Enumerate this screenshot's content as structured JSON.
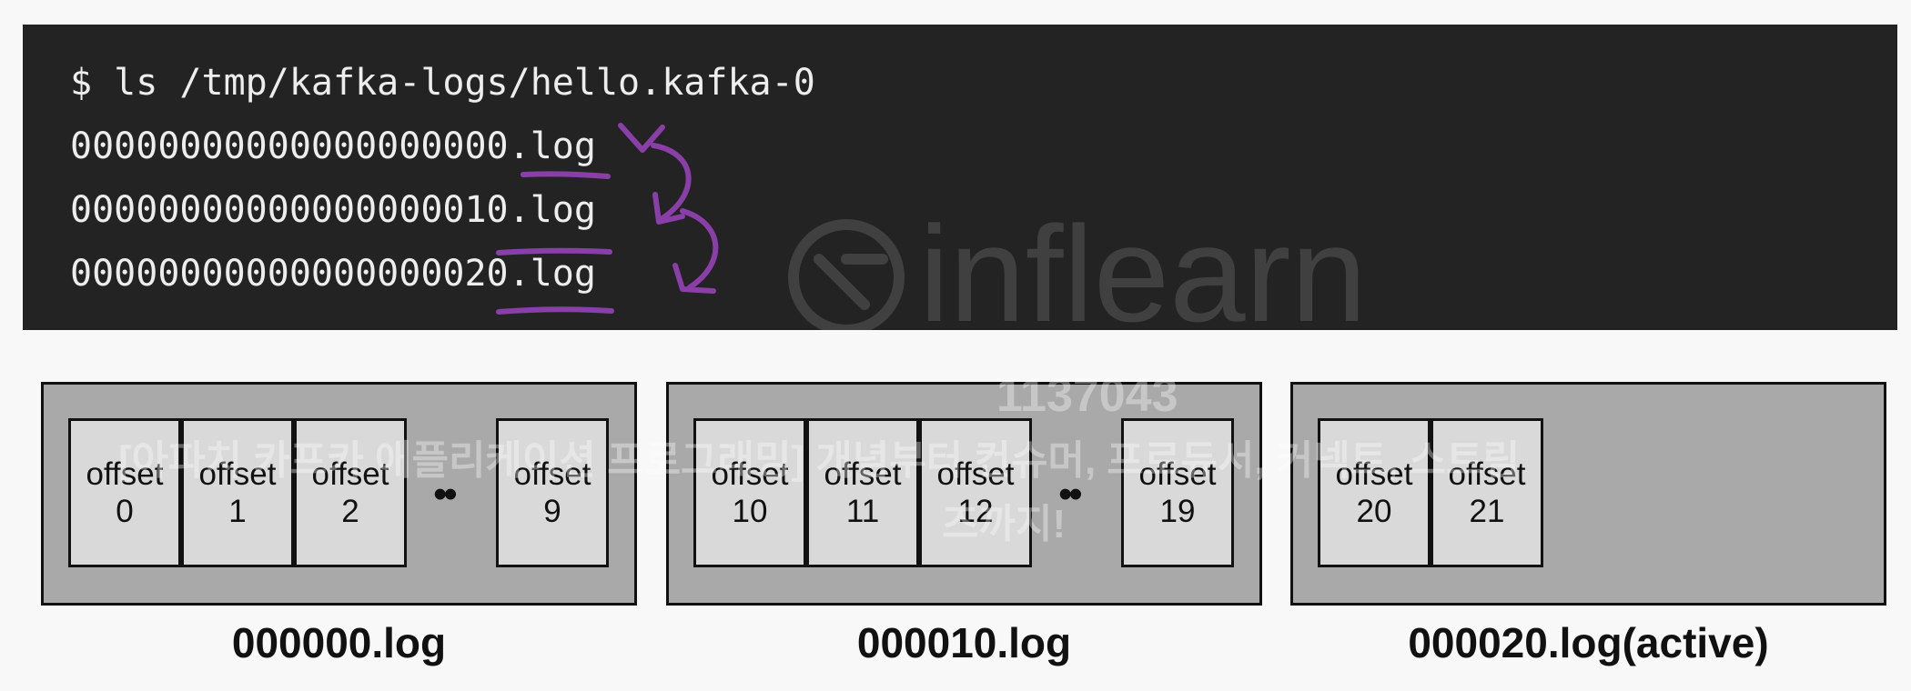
{
  "terminal": {
    "command": "$ ls /tmp/kafka-logs/hello.kafka-0",
    "files": [
      "00000000000000000000.log",
      "00000000000000000010.log",
      "00000000000000000020.log"
    ]
  },
  "segments": [
    {
      "label": "000000.log",
      "cells": [
        {
          "title": "offset",
          "num": "0"
        },
        {
          "title": "offset",
          "num": "1"
        },
        {
          "title": "offset",
          "num": "2"
        },
        {
          "title": "offset",
          "num": "9"
        }
      ],
      "ellipsis": "••"
    },
    {
      "label": "000010.log",
      "cells": [
        {
          "title": "offset",
          "num": "10"
        },
        {
          "title": "offset",
          "num": "11"
        },
        {
          "title": "offset",
          "num": "12"
        },
        {
          "title": "offset",
          "num": "19"
        }
      ],
      "ellipsis": "••"
    },
    {
      "label": "000020.log(active)",
      "cells": [
        {
          "title": "offset",
          "num": "20"
        },
        {
          "title": "offset",
          "num": "21"
        }
      ]
    }
  ],
  "watermark": {
    "brand": "inflearn",
    "id": "1137043",
    "course_line1": "[아파치 카프카 애플리케이션 프로그래밍] 개념부터 컨슈머, 프로듀서, 커넥트, 스트림",
    "course_line2": "즈까지!"
  },
  "colors": {
    "terminal_bg": "#232323",
    "segment_bg": "#a9a9a9",
    "cell_bg": "#d9d9d9",
    "annotation": "#8a3fa8"
  }
}
